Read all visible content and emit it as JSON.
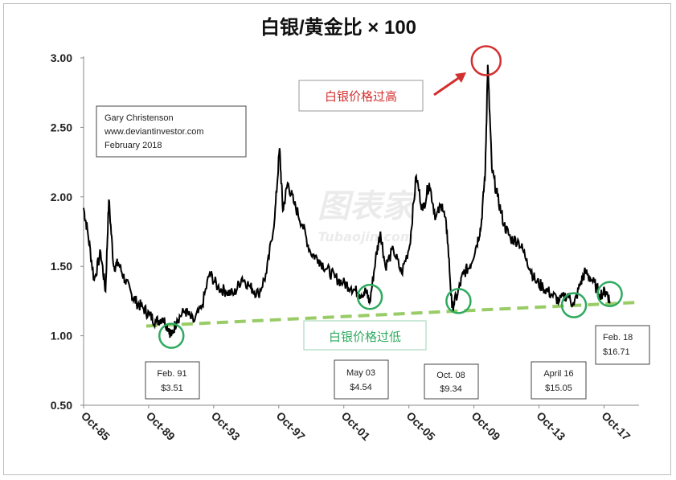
{
  "chart_data": {
    "type": "line",
    "title": "白银/黄金比 × 100",
    "ylim": [
      0.5,
      3.0
    ],
    "y_ticks": [
      "3.00",
      "2.50",
      "2.00",
      "1.50",
      "1.00",
      "0.50"
    ],
    "x_ticks": [
      "Oct-85",
      "Oct-89",
      "Oct-93",
      "Oct-97",
      "Oct-01",
      "Oct-05",
      "Oct-09",
      "Oct-13",
      "Oct-17"
    ],
    "x_range": [
      1985.75,
      2019.9
    ],
    "grid": false,
    "series": [
      {
        "x": [
          1985.75,
          1986.0,
          1986.4,
          1986.8,
          1987.1,
          1987.3,
          1987.6,
          1987.9,
          1988.3,
          1988.7,
          1989.0,
          1989.4,
          1989.8,
          1990.2,
          1990.6,
          1991.0,
          1991.15,
          1991.5,
          1992.0,
          1992.5,
          1993.0,
          1993.5,
          1994.0,
          1994.5,
          1995.0,
          1995.5,
          1996.0,
          1996.5,
          1997.0,
          1997.5,
          1997.8,
          1998.0,
          1998.3,
          1998.7,
          1999.2,
          1999.7,
          2000.2,
          2000.7,
          2001.2,
          2001.7,
          2002.2,
          2002.7,
          2003.1,
          2003.35,
          2003.7,
          2004.0,
          2004.3,
          2004.8,
          2005.3,
          2005.8,
          2006.2,
          2006.6,
          2007.0,
          2007.4,
          2007.8,
          2008.1,
          2008.4,
          2008.75,
          2009.1,
          2009.5,
          2009.9,
          2010.2,
          2010.45,
          2010.6,
          2010.85,
          2011.2,
          2011.6,
          2012.0,
          2012.5,
          2013.0,
          2013.5,
          2014.0,
          2014.5,
          2015.0,
          2015.5,
          2015.9,
          2016.3,
          2016.6,
          2017.0,
          2017.5,
          2017.9,
          2018.1
        ],
        "values": [
          1.92,
          1.75,
          1.4,
          1.6,
          1.32,
          1.98,
          1.5,
          1.52,
          1.4,
          1.3,
          1.24,
          1.2,
          1.15,
          1.1,
          1.13,
          1.05,
          1.0,
          1.12,
          1.18,
          1.1,
          1.2,
          1.45,
          1.35,
          1.32,
          1.3,
          1.42,
          1.35,
          1.3,
          1.45,
          1.85,
          2.35,
          1.9,
          2.1,
          1.95,
          1.8,
          1.6,
          1.55,
          1.48,
          1.42,
          1.38,
          1.35,
          1.3,
          1.32,
          1.24,
          1.55,
          1.75,
          1.5,
          1.62,
          1.45,
          1.65,
          2.15,
          1.9,
          2.1,
          1.85,
          1.95,
          1.75,
          1.2,
          1.3,
          1.45,
          1.5,
          1.65,
          1.8,
          2.2,
          2.95,
          2.2,
          2.0,
          1.8,
          1.7,
          1.68,
          1.55,
          1.4,
          1.35,
          1.3,
          1.25,
          1.3,
          1.22,
          1.38,
          1.46,
          1.4,
          1.3,
          1.32,
          1.25
        ]
      }
    ],
    "trendline": {
      "x": [
        1989.6,
        2019.8
      ],
      "y": [
        1.07,
        1.24
      ]
    },
    "annotations": {
      "source_box": [
        "Gary Christenson",
        "www.deviantinvestor.com",
        "February 2018"
      ],
      "high_label": "白银价格过高",
      "low_label": "白银价格过低",
      "price_boxes": [
        {
          "date": "Feb. 91",
          "price": "$3.51"
        },
        {
          "date": "May 03",
          "price": "$4.54"
        },
        {
          "date": "Oct. 08",
          "price": "$9.34"
        },
        {
          "date": "April 16",
          "price": "$15.05"
        },
        {
          "date": "Feb. 18",
          "price": "$16.71"
        }
      ],
      "highlight_points": [
        {
          "x": 2010.5,
          "y": 2.98,
          "color": "#d32f2f"
        },
        {
          "x": 1991.15,
          "y": 1.0,
          "color": "#2eaa5f"
        },
        {
          "x": 2003.35,
          "y": 1.28,
          "color": "#2eaa5f"
        },
        {
          "x": 2008.8,
          "y": 1.25,
          "color": "#2eaa5f"
        },
        {
          "x": 2015.9,
          "y": 1.22,
          "color": "#2eaa5f"
        },
        {
          "x": 2018.1,
          "y": 1.3,
          "color": "#2eaa5f"
        }
      ]
    },
    "colors": {
      "line": "#000000",
      "trendline": "#99cc66",
      "high": "#d32f2f",
      "low": "#2eaa5f"
    },
    "watermark": "Tubaojin.com"
  }
}
